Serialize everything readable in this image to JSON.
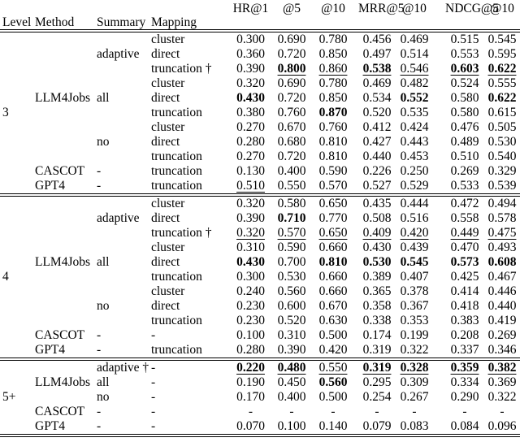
{
  "table": {
    "metric_headers": [
      "HR@1",
      "@5",
      "@10",
      "MRR@5",
      "@10",
      "NDCG@5",
      "@10"
    ],
    "column_headers": [
      "Level",
      "Method",
      "Summary",
      "Mapping"
    ],
    "sections": [
      {
        "rows": [
          {
            "level": "",
            "method": "",
            "summary": "",
            "mapping": "cluster",
            "values": [
              {
                "v": "0.300"
              },
              {
                "v": "0.690"
              },
              {
                "v": "0.780"
              },
              {
                "v": "0.456"
              },
              {
                "v": "0.469"
              },
              {
                "v": "0.515"
              },
              {
                "v": "0.545"
              }
            ]
          },
          {
            "level": "",
            "method": "",
            "summary": "adaptive",
            "mapping": "direct",
            "values": [
              {
                "v": "0.360"
              },
              {
                "v": "0.720"
              },
              {
                "v": "0.850"
              },
              {
                "v": "0.497"
              },
              {
                "v": "0.514"
              },
              {
                "v": "0.553"
              },
              {
                "v": "0.595"
              }
            ]
          },
          {
            "level": "",
            "method": "",
            "summary": "",
            "mapping": "truncation †",
            "values": [
              {
                "v": "0.390"
              },
              {
                "v": "0.800",
                "b": true,
                "u": true
              },
              {
                "v": "0.860",
                "u": true
              },
              {
                "v": "0.538",
                "b": true,
                "u": true
              },
              {
                "v": "0.546",
                "u": true
              },
              {
                "v": "0.603",
                "b": true,
                "u": true
              },
              {
                "v": "0.622",
                "b": true,
                "u": true
              }
            ]
          },
          {
            "level": "",
            "method": "",
            "summary": "",
            "mapping": "cluster",
            "values": [
              {
                "v": "0.320"
              },
              {
                "v": "0.690"
              },
              {
                "v": "0.780"
              },
              {
                "v": "0.469"
              },
              {
                "v": "0.482"
              },
              {
                "v": "0.524"
              },
              {
                "v": "0.555"
              }
            ]
          },
          {
            "level": "",
            "method": "LLM4Jobs",
            "summary": "all",
            "mapping": "direct",
            "values": [
              {
                "v": "0.430",
                "b": true
              },
              {
                "v": "0.720"
              },
              {
                "v": "0.850"
              },
              {
                "v": "0.534"
              },
              {
                "v": "0.552",
                "b": true
              },
              {
                "v": "0.580"
              },
              {
                "v": "0.622",
                "b": true
              }
            ]
          },
          {
            "level": "3",
            "method": "",
            "summary": "",
            "mapping": "truncation",
            "values": [
              {
                "v": "0.380"
              },
              {
                "v": "0.760"
              },
              {
                "v": "0.870",
                "b": true
              },
              {
                "v": "0.520"
              },
              {
                "v": "0.535"
              },
              {
                "v": "0.580"
              },
              {
                "v": "0.615"
              }
            ]
          },
          {
            "level": "",
            "method": "",
            "summary": "",
            "mapping": "cluster",
            "values": [
              {
                "v": "0.270"
              },
              {
                "v": "0.670"
              },
              {
                "v": "0.760"
              },
              {
                "v": "0.412"
              },
              {
                "v": "0.424"
              },
              {
                "v": "0.476"
              },
              {
                "v": "0.505"
              }
            ]
          },
          {
            "level": "",
            "method": "",
            "summary": "no",
            "mapping": "direct",
            "values": [
              {
                "v": "0.280"
              },
              {
                "v": "0.680"
              },
              {
                "v": "0.810"
              },
              {
                "v": "0.427"
              },
              {
                "v": "0.443"
              },
              {
                "v": "0.489"
              },
              {
                "v": "0.530"
              }
            ]
          },
          {
            "level": "",
            "method": "",
            "summary": "",
            "mapping": "truncation",
            "values": [
              {
                "v": "0.270"
              },
              {
                "v": "0.720"
              },
              {
                "v": "0.810"
              },
              {
                "v": "0.440"
              },
              {
                "v": "0.453"
              },
              {
                "v": "0.510"
              },
              {
                "v": "0.540"
              }
            ]
          },
          {
            "level": "",
            "method": "CASCOT",
            "summary": "-",
            "mapping": "truncation",
            "values": [
              {
                "v": "0.130"
              },
              {
                "v": "0.400"
              },
              {
                "v": "0.590"
              },
              {
                "v": "0.226"
              },
              {
                "v": "0.250"
              },
              {
                "v": "0.269"
              },
              {
                "v": "0.329"
              }
            ]
          },
          {
            "level": "",
            "method": "GPT4",
            "summary": "-",
            "mapping": "truncation",
            "values": [
              {
                "v": "0.510",
                "u": true
              },
              {
                "v": "0.550"
              },
              {
                "v": "0.570"
              },
              {
                "v": "0.527"
              },
              {
                "v": "0.529"
              },
              {
                "v": "0.533"
              },
              {
                "v": "0.539"
              }
            ]
          }
        ]
      },
      {
        "rows": [
          {
            "level": "",
            "method": "",
            "summary": "",
            "mapping": "cluster",
            "values": [
              {
                "v": "0.320"
              },
              {
                "v": "0.580"
              },
              {
                "v": "0.650"
              },
              {
                "v": "0.435"
              },
              {
                "v": "0.444"
              },
              {
                "v": "0.472"
              },
              {
                "v": "0.494"
              }
            ]
          },
          {
            "level": "",
            "method": "",
            "summary": "adaptive",
            "mapping": "direct",
            "values": [
              {
                "v": "0.390"
              },
              {
                "v": "0.710",
                "b": true
              },
              {
                "v": "0.770"
              },
              {
                "v": "0.508"
              },
              {
                "v": "0.516"
              },
              {
                "v": "0.558"
              },
              {
                "v": "0.578"
              }
            ]
          },
          {
            "level": "",
            "method": "",
            "summary": "",
            "mapping": "truncation †",
            "values": [
              {
                "v": "0.320",
                "u": true
              },
              {
                "v": "0.570",
                "u": true
              },
              {
                "v": "0.650",
                "u": true
              },
              {
                "v": "0.409",
                "u": true
              },
              {
                "v": "0.420",
                "u": true
              },
              {
                "v": "0.449",
                "u": true
              },
              {
                "v": "0.475",
                "u": true
              }
            ]
          },
          {
            "level": "",
            "method": "",
            "summary": "",
            "mapping": "cluster",
            "values": [
              {
                "v": "0.310"
              },
              {
                "v": "0.590"
              },
              {
                "v": "0.660"
              },
              {
                "v": "0.430"
              },
              {
                "v": "0.439"
              },
              {
                "v": "0.470"
              },
              {
                "v": "0.493"
              }
            ]
          },
          {
            "level": "",
            "method": "LLM4Jobs",
            "summary": "all",
            "mapping": "direct",
            "values": [
              {
                "v": "0.430",
                "b": true
              },
              {
                "v": "0.700"
              },
              {
                "v": "0.810",
                "b": true
              },
              {
                "v": "0.530",
                "b": true
              },
              {
                "v": "0.545",
                "b": true
              },
              {
                "v": "0.573",
                "b": true
              },
              {
                "v": "0.608",
                "b": true
              }
            ]
          },
          {
            "level": "4",
            "method": "",
            "summary": "",
            "mapping": "truncation",
            "values": [
              {
                "v": "0.300"
              },
              {
                "v": "0.530"
              },
              {
                "v": "0.660"
              },
              {
                "v": "0.389"
              },
              {
                "v": "0.407"
              },
              {
                "v": "0.425"
              },
              {
                "v": "0.467"
              }
            ]
          },
          {
            "level": "",
            "method": "",
            "summary": "",
            "mapping": "cluster",
            "values": [
              {
                "v": "0.240"
              },
              {
                "v": "0.560"
              },
              {
                "v": "0.660"
              },
              {
                "v": "0.365"
              },
              {
                "v": "0.378"
              },
              {
                "v": "0.414"
              },
              {
                "v": "0.446"
              }
            ]
          },
          {
            "level": "",
            "method": "",
            "summary": "no",
            "mapping": "direct",
            "values": [
              {
                "v": "0.230"
              },
              {
                "v": "0.600"
              },
              {
                "v": "0.670"
              },
              {
                "v": "0.358"
              },
              {
                "v": "0.367"
              },
              {
                "v": "0.418"
              },
              {
                "v": "0.440"
              }
            ]
          },
          {
            "level": "",
            "method": "",
            "summary": "",
            "mapping": "truncation",
            "values": [
              {
                "v": "0.230"
              },
              {
                "v": "0.520"
              },
              {
                "v": "0.630"
              },
              {
                "v": "0.338"
              },
              {
                "v": "0.353"
              },
              {
                "v": "0.383"
              },
              {
                "v": "0.419"
              }
            ]
          },
          {
            "level": "",
            "method": "CASCOT",
            "summary": "-",
            "mapping": "-",
            "values": [
              {
                "v": "0.100"
              },
              {
                "v": "0.310"
              },
              {
                "v": "0.500"
              },
              {
                "v": "0.174"
              },
              {
                "v": "0.199"
              },
              {
                "v": "0.208"
              },
              {
                "v": "0.269"
              }
            ]
          },
          {
            "level": "",
            "method": "GPT4",
            "summary": "-",
            "mapping": "truncation",
            "values": [
              {
                "v": "0.280"
              },
              {
                "v": "0.390"
              },
              {
                "v": "0.420"
              },
              {
                "v": "0.319"
              },
              {
                "v": "0.322"
              },
              {
                "v": "0.337"
              },
              {
                "v": "0.346"
              }
            ]
          }
        ]
      },
      {
        "rows": [
          {
            "level": "",
            "method": "",
            "summary": "adaptive †",
            "mapping": "-",
            "values": [
              {
                "v": "0.220",
                "b": true,
                "u": true
              },
              {
                "v": "0.480",
                "b": true,
                "u": true
              },
              {
                "v": "0.550",
                "u": true
              },
              {
                "v": "0.319",
                "b": true,
                "u": true
              },
              {
                "v": "0.328",
                "b": true,
                "u": true
              },
              {
                "v": "0.359",
                "b": true,
                "u": true
              },
              {
                "v": "0.382",
                "b": true,
                "u": true
              }
            ]
          },
          {
            "level": "",
            "method": "LLM4Jobs",
            "summary": "all",
            "mapping": "-",
            "values": [
              {
                "v": "0.190"
              },
              {
                "v": "0.450"
              },
              {
                "v": "0.560",
                "b": true
              },
              {
                "v": "0.295"
              },
              {
                "v": "0.309"
              },
              {
                "v": "0.334"
              },
              {
                "v": "0.369"
              }
            ]
          },
          {
            "level": "5+",
            "method": "",
            "summary": "no",
            "mapping": "-",
            "values": [
              {
                "v": "0.170"
              },
              {
                "v": "0.400"
              },
              {
                "v": "0.500"
              },
              {
                "v": "0.254"
              },
              {
                "v": "0.267"
              },
              {
                "v": "0.290"
              },
              {
                "v": "0.322"
              }
            ]
          },
          {
            "level": "",
            "method": "CASCOT",
            "summary": "-",
            "mapping": "-",
            "values": [
              {
                "v": "-"
              },
              {
                "v": "-"
              },
              {
                "v": "-"
              },
              {
                "v": "-"
              },
              {
                "v": "-"
              },
              {
                "v": "-"
              },
              {
                "v": "-"
              }
            ]
          },
          {
            "level": "",
            "method": "GPT4",
            "summary": "-",
            "mapping": "-",
            "values": [
              {
                "v": "0.070"
              },
              {
                "v": "0.100"
              },
              {
                "v": "0.140"
              },
              {
                "v": "0.079"
              },
              {
                "v": "0.083"
              },
              {
                "v": "0.084"
              },
              {
                "v": "0.096"
              }
            ]
          }
        ]
      }
    ]
  }
}
